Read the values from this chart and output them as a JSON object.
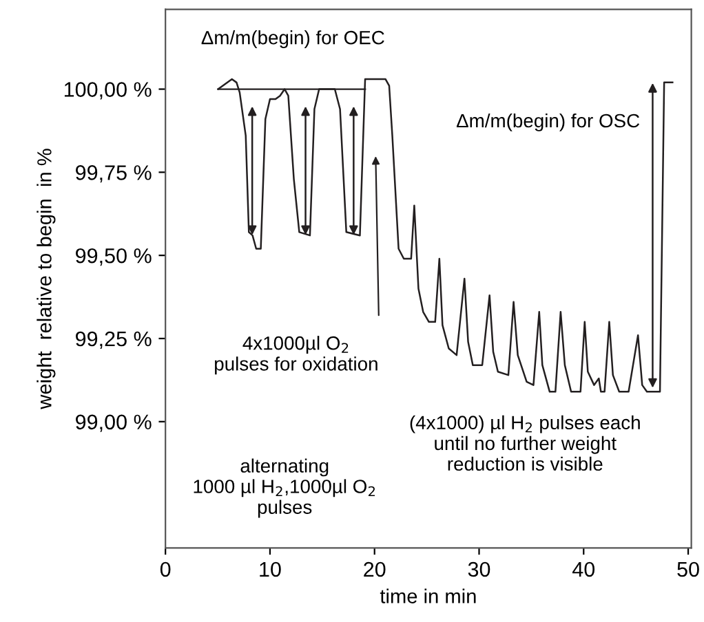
{
  "chart_data": {
    "type": "line",
    "xlabel": "time in min",
    "ylabel": "weight  relative to begin  in %",
    "x": [
      5.04,
      6.36,
      6.8,
      7.1,
      7.68,
      7.98,
      8.33,
      8.68,
      9.12,
      9.56,
      10.0,
      10.53,
      10.96,
      11.4,
      11.75,
      12.28,
      12.8,
      13.82,
      14.25,
      14.7,
      16.2,
      16.7,
      17.3,
      18.6,
      19.1,
      21.05,
      21.4,
      21.7,
      22.3,
      22.8,
      23.5,
      23.8,
      24.2,
      24.65,
      25.2,
      25.8,
      26.2,
      26.5,
      27.1,
      27.85,
      28.6,
      28.95,
      29.4,
      30.3,
      31.0,
      31.35,
      31.8,
      32.8,
      33.3,
      33.7,
      34.55,
      35.2,
      35.75,
      36.05,
      36.75,
      37.3,
      37.8,
      38.2,
      38.8,
      39.7,
      40.1,
      40.4,
      41.0,
      41.45,
      41.65,
      42.0,
      42.45,
      42.8,
      43.4,
      44.3,
      45.2,
      45.6,
      46.05,
      47.3,
      47.7,
      48.5
    ],
    "series": [
      {
        "color": "#231f20",
        "values": [
          100.0,
          100.03,
          100.02,
          99.99,
          99.86,
          99.57,
          99.56,
          99.52,
          99.52,
          99.91,
          99.97,
          99.97,
          99.98,
          100.0,
          99.98,
          99.73,
          99.57,
          99.56,
          99.94,
          100.0,
          100.0,
          99.94,
          99.57,
          99.56,
          100.03,
          100.03,
          100.01,
          99.86,
          99.52,
          99.49,
          99.49,
          99.65,
          99.4,
          99.33,
          99.3,
          99.3,
          99.49,
          99.29,
          99.22,
          99.2,
          99.43,
          99.24,
          99.17,
          99.17,
          99.38,
          99.21,
          99.15,
          99.14,
          99.36,
          99.2,
          99.12,
          99.11,
          99.33,
          99.17,
          99.09,
          99.09,
          99.33,
          99.17,
          99.09,
          99.09,
          99.3,
          99.15,
          99.11,
          99.13,
          99.09,
          99.09,
          99.3,
          99.14,
          99.09,
          99.09,
          99.26,
          99.11,
          99.09,
          99.09,
          100.02,
          100.02
        ]
      }
    ],
    "xlim": [
      0,
      50.3
    ],
    "xticks": [
      0,
      10,
      20,
      30,
      40,
      50
    ],
    "ylim": [
      98.62,
      100.24
    ],
    "yticks": [
      {
        "value": 99.0,
        "label": "99,00 %"
      },
      {
        "value": 99.25,
        "label": "99,25 %"
      },
      {
        "value": 99.5,
        "label": "99,50 %"
      },
      {
        "value": 99.75,
        "label": "99,75 %"
      },
      {
        "value": 100.0,
        "label": "100,00 %"
      }
    ],
    "ref_lines": [
      {
        "axis": "y",
        "value": 100.0,
        "color": "#231f20"
      }
    ],
    "grid": false,
    "legend": false,
    "marker": "none",
    "line_style": "solid",
    "annotations": [
      "Δm/m(begin) for OEC",
      "Δm/m(begin) for OSC",
      "4x1000µl O$_{2}$\npulses for oxidation",
      "(4x1000) µl H$_{2}$ pulses each\nuntil no further weight\nreduction is visible",
      "alternating\n1000 µl H$_{2}$,1000µl O$_{2}$\npulses"
    ]
  }
}
